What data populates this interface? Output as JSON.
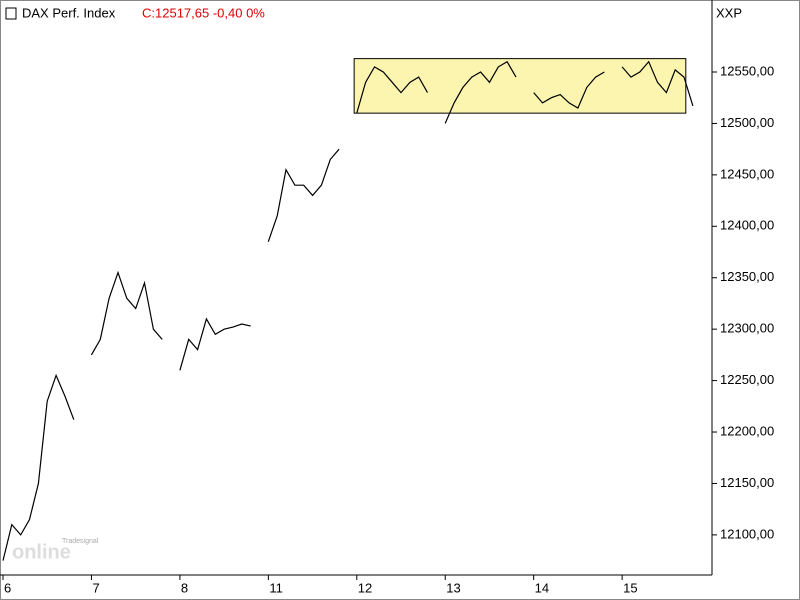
{
  "chart_data": {
    "type": "line",
    "title": "DAX Perf. Index",
    "subtitle": "C:12517,65 -0,40 0%",
    "axis_label": "XXP",
    "watermark": [
      "Tradesignal",
      "online"
    ],
    "x": [
      0,
      1,
      2,
      3,
      4,
      5,
      6,
      7,
      8,
      9,
      10,
      11,
      12,
      13,
      14,
      15,
      16,
      17,
      18,
      19,
      20,
      21,
      22,
      23,
      24,
      25,
      26,
      27,
      28,
      29,
      30,
      31,
      32,
      33,
      34,
      35,
      36,
      37,
      38,
      39,
      40,
      41,
      42,
      43,
      44,
      45,
      46,
      47,
      48,
      49,
      50,
      51,
      52,
      53,
      54,
      55,
      56,
      57,
      58,
      59,
      60,
      61,
      62,
      63,
      64,
      65,
      66,
      67,
      68,
      69,
      70,
      71,
      72,
      73,
      74,
      75,
      76,
      77,
      78
    ],
    "series": [
      {
        "color": "#000000",
        "values": [
          12075,
          12110,
          12100,
          12115,
          12150,
          12230,
          12255,
          12235,
          12212,
          null,
          12275,
          12290,
          12330,
          12355,
          12330,
          12320,
          12345,
          12300,
          12290,
          null,
          12260,
          12290,
          12280,
          12310,
          12295,
          12300,
          12302,
          12305,
          12303,
          null,
          12385,
          12410,
          12455,
          12440,
          12440,
          12430,
          12440,
          12465,
          12475,
          null,
          12510,
          12540,
          12555,
          12550,
          12540,
          12530,
          12540,
          12545,
          12530,
          null,
          12500,
          12520,
          12535,
          12545,
          12550,
          12540,
          12555,
          12560,
          12545,
          null,
          12530,
          12520,
          12525,
          12528,
          12520,
          12515,
          12535,
          12545,
          12550,
          null,
          12555,
          12545,
          12550,
          12560,
          12540,
          12530,
          12552,
          12545,
          12517
        ]
      }
    ],
    "highlight": {
      "x": [
        39.7,
        77.2
      ],
      "y": [
        12510,
        12563
      ],
      "color": "#fbf5b0"
    },
    "xlim": [
      0,
      80.5
    ],
    "xticks": [
      {
        "value": 0,
        "label": "6"
      },
      {
        "value": 10,
        "label": "7"
      },
      {
        "value": 20,
        "label": "8"
      },
      {
        "value": 30,
        "label": "11"
      },
      {
        "value": 40,
        "label": "12"
      },
      {
        "value": 50,
        "label": "13"
      },
      {
        "value": 60,
        "label": "14"
      },
      {
        "value": 70,
        "label": "15"
      }
    ],
    "ylim": [
      12061,
      12620
    ],
    "yticks": [
      {
        "value": 12100,
        "label": "12100,00"
      },
      {
        "value": 12150,
        "label": "12150,00"
      },
      {
        "value": 12200,
        "label": "12200,00"
      },
      {
        "value": 12250,
        "label": "12250,00"
      },
      {
        "value": 12300,
        "label": "12300,00"
      },
      {
        "value": 12350,
        "label": "12350,00"
      },
      {
        "value": 12400,
        "label": "12400,00"
      },
      {
        "value": 12450,
        "label": "12450,00"
      },
      {
        "value": 12500,
        "label": "12500,00"
      },
      {
        "value": 12550,
        "label": "12550,00"
      }
    ]
  }
}
